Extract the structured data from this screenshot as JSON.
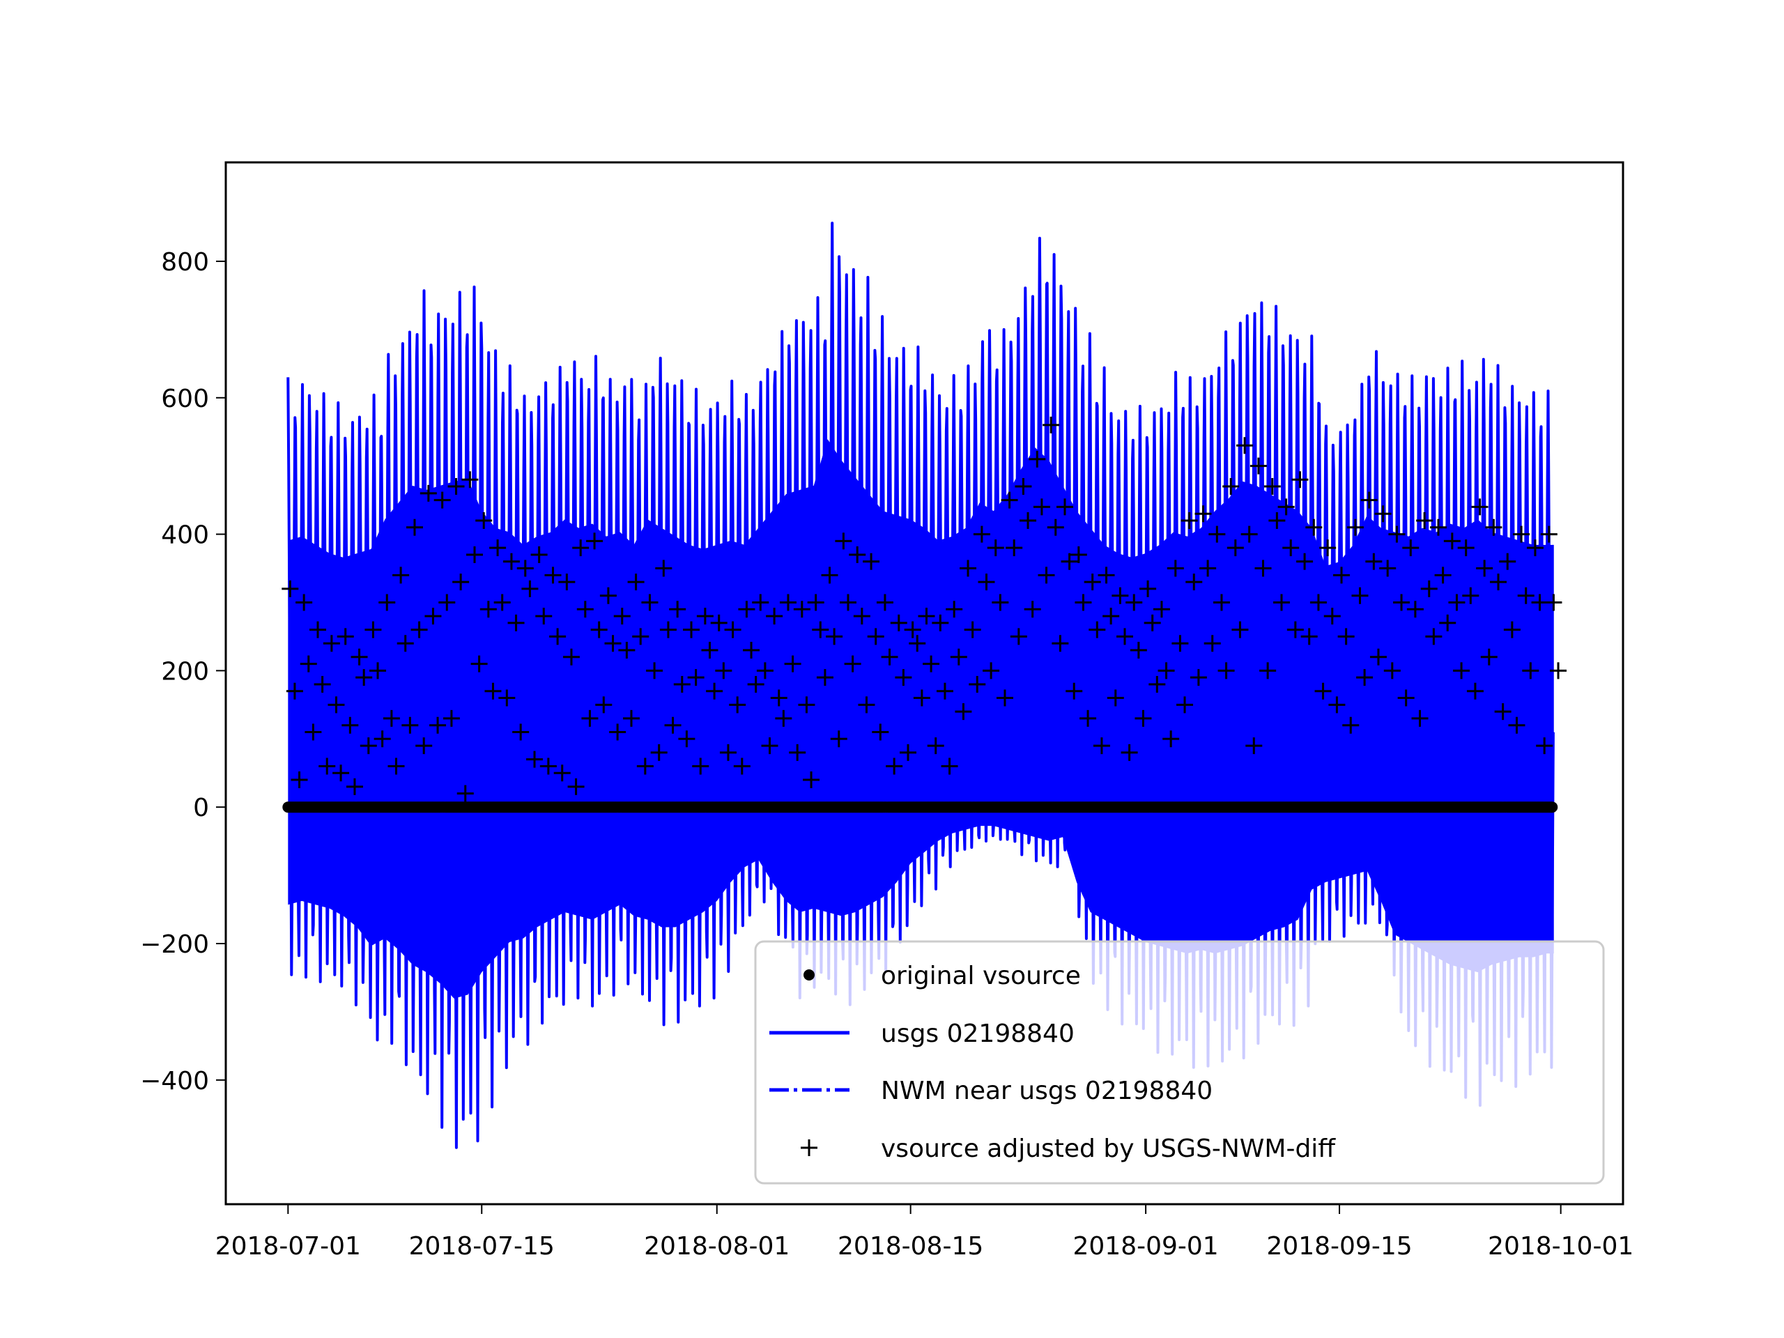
{
  "chart_data": {
    "type": "line",
    "title": "",
    "xlabel": "",
    "ylabel": "",
    "x_axis_type": "date",
    "xlim": [
      "2018-06-26T12:00",
      "2018-10-05T12:00"
    ],
    "ylim": [
      -582,
      945
    ],
    "grid": false,
    "legend_placement": "lower right",
    "x_ticks": [
      "2018-07-01",
      "2018-07-15",
      "2018-08-01",
      "2018-08-15",
      "2018-09-01",
      "2018-09-15",
      "2018-10-01"
    ],
    "y_ticks": [
      -400,
      -200,
      0,
      200,
      400,
      600,
      800
    ],
    "y_tick_labels": [
      "−400",
      "−200",
      "0",
      "200",
      "400",
      "600",
      "800"
    ],
    "colors": {
      "usgs": "#0000ff",
      "nwm": "#0000ff",
      "markers": "#000000"
    },
    "start_date": "2018-07-01",
    "series": [
      {
        "name": "original vsource",
        "style": "black dot markers",
        "constant_value": 0,
        "date_range": [
          "2018-07-01",
          "2018-09-30"
        ]
      },
      {
        "name": "usgs 02198840",
        "style": "solid blue line, semi-diurnal tidal oscillation",
        "daily_max": [
          630,
          640,
          620,
          600,
          590,
          600,
          610,
          680,
          720,
          760,
          750,
          760,
          770,
          775,
          700,
          660,
          650,
          620,
          640,
          650,
          680,
          660,
          670,
          640,
          650,
          620,
          680,
          660,
          640,
          620,
          610,
          620,
          630,
          620,
          660,
          700,
          740,
          750,
          760,
          870,
          820,
          780,
          740,
          700,
          690,
          680,
          660,
          630,
          640,
          660,
          720,
          700,
          740,
          800,
          850,
          820,
          760,
          700,
          660,
          620,
          600,
          590,
          600,
          620,
          650,
          640,
          660,
          700,
          730,
          770,
          760,
          740,
          720,
          700,
          660,
          570,
          580,
          620,
          690,
          660,
          650,
          640,
          660,
          650,
          670,
          660,
          680,
          650,
          640,
          630,
          620,
          620
        ],
        "daily_min": [
          -260,
          -250,
          -260,
          -270,
          -290,
          -320,
          -370,
          -350,
          -380,
          -420,
          -440,
          -470,
          -510,
          -500,
          -440,
          -400,
          -360,
          -350,
          -320,
          -300,
          -280,
          -290,
          -300,
          -280,
          -260,
          -290,
          -300,
          -320,
          -320,
          -300,
          -280,
          -250,
          -200,
          -160,
          -140,
          -200,
          -250,
          -280,
          -270,
          -280,
          -290,
          -280,
          -260,
          -240,
          -200,
          -150,
          -120,
          -90,
          -70,
          -60,
          -50,
          -50,
          -60,
          -70,
          -80,
          -90,
          -80,
          -200,
          -280,
          -300,
          -320,
          -340,
          -360,
          -370,
          -380,
          -390,
          -380,
          -390,
          -380,
          -370,
          -350,
          -330,
          -320,
          -300,
          -220,
          -200,
          -190,
          -180,
          -170,
          -250,
          -340,
          -360,
          -380,
          -400,
          -420,
          -430,
          -440,
          -420,
          -410,
          -400,
          -400,
          -390
        ]
      },
      {
        "name": "NWM near usgs 02198840",
        "style": "dash-dot blue line (hidden beneath usgs series)"
      },
      {
        "name": "vsource adjusted by USGS-NWM-diff",
        "style": "black plus markers",
        "daily_values": [
          [
            320,
            170,
            40
          ],
          [
            300,
            210,
            110
          ],
          [
            260,
            180,
            60
          ],
          [
            240,
            150,
            50
          ],
          [
            250,
            120,
            30
          ],
          [
            220,
            190,
            90
          ],
          [
            260,
            200,
            100
          ],
          [
            300,
            130,
            60
          ],
          [
            340,
            240,
            120
          ],
          [
            410,
            260,
            90
          ],
          [
            460,
            280,
            120
          ],
          [
            450,
            300,
            130
          ],
          [
            470,
            330,
            20
          ],
          [
            480,
            370,
            210
          ],
          [
            420,
            290,
            170
          ],
          [
            380,
            300,
            160
          ],
          [
            360,
            270,
            110
          ],
          [
            350,
            320,
            70
          ],
          [
            370,
            280,
            60
          ],
          [
            340,
            250,
            50
          ],
          [
            330,
            220,
            30
          ],
          [
            380,
            290,
            130
          ],
          [
            390,
            260,
            150
          ],
          [
            310,
            240,
            110
          ],
          [
            280,
            230,
            130
          ],
          [
            330,
            250,
            60
          ],
          [
            300,
            200,
            80
          ],
          [
            350,
            260,
            120
          ],
          [
            290,
            180,
            100
          ],
          [
            260,
            190,
            60
          ],
          [
            280,
            230,
            170
          ],
          [
            270,
            200,
            80
          ],
          [
            260,
            150,
            60
          ],
          [
            290,
            230,
            180
          ],
          [
            300,
            200,
            90
          ],
          [
            280,
            160,
            130
          ],
          [
            300,
            210,
            80
          ],
          [
            290,
            150,
            40
          ],
          [
            300,
            260,
            190
          ],
          [
            340,
            250,
            100
          ],
          [
            390,
            300,
            210
          ],
          [
            370,
            280,
            150
          ],
          [
            360,
            250,
            110
          ],
          [
            300,
            220,
            60
          ],
          [
            270,
            190,
            80
          ],
          [
            260,
            240,
            160
          ],
          [
            280,
            210,
            90
          ],
          [
            270,
            170,
            60
          ],
          [
            290,
            220,
            140
          ],
          [
            350,
            260,
            180
          ],
          [
            400,
            330,
            200
          ],
          [
            380,
            300,
            160
          ],
          [
            450,
            380,
            250
          ],
          [
            470,
            420,
            290
          ],
          [
            510,
            440,
            340
          ],
          [
            560,
            410,
            240
          ],
          [
            440,
            360,
            170
          ],
          [
            370,
            300,
            130
          ],
          [
            330,
            260,
            90
          ],
          [
            340,
            280,
            160
          ],
          [
            310,
            250,
            80
          ],
          [
            300,
            230,
            130
          ],
          [
            320,
            270,
            180
          ],
          [
            290,
            200,
            100
          ],
          [
            350,
            240,
            150
          ],
          [
            420,
            330,
            190
          ],
          [
            430,
            350,
            240
          ],
          [
            400,
            300,
            200
          ],
          [
            470,
            380,
            260
          ],
          [
            530,
            400,
            90
          ],
          [
            500,
            350,
            200
          ],
          [
            470,
            420,
            300
          ],
          [
            440,
            380,
            260
          ],
          [
            480,
            360,
            250
          ],
          [
            410,
            300,
            170
          ],
          [
            380,
            280,
            150
          ],
          [
            340,
            250,
            120
          ],
          [
            410,
            310,
            190
          ],
          [
            450,
            360,
            220
          ],
          [
            430,
            350,
            200
          ],
          [
            400,
            300,
            160
          ],
          [
            380,
            290,
            130
          ],
          [
            420,
            320,
            250
          ],
          [
            410,
            340,
            270
          ],
          [
            390,
            300,
            200
          ],
          [
            380,
            310,
            170
          ],
          [
            440,
            350,
            220
          ],
          [
            410,
            330,
            140
          ],
          [
            360,
            260,
            120
          ],
          [
            400,
            310,
            200
          ],
          [
            380,
            300,
            90
          ],
          [
            400,
            300,
            200
          ]
        ]
      }
    ],
    "legend": [
      {
        "label": "original vsource",
        "marker": "dot"
      },
      {
        "label": "usgs 02198840",
        "marker": "solid-line"
      },
      {
        "label": "NWM near usgs 02198840",
        "marker": "dash-dot-line"
      },
      {
        "label": "vsource adjusted by USGS-NWM-diff",
        "marker": "plus"
      }
    ]
  }
}
